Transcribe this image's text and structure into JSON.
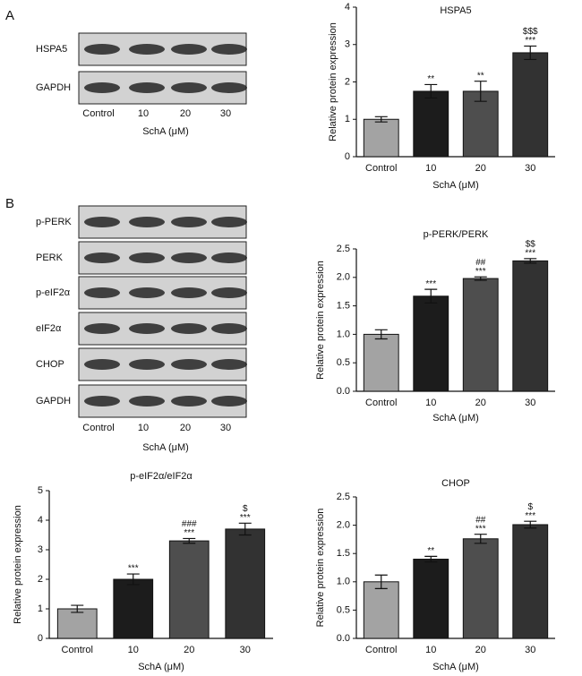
{
  "panel_labels": [
    "A",
    "B"
  ],
  "blots": [
    {
      "rows": [
        "HSPA5",
        "GAPDH"
      ],
      "lanes": [
        "Control",
        "10",
        "20",
        "30"
      ],
      "xlabel": "SchA (μM)"
    },
    {
      "rows": [
        "p-PERK",
        "PERK",
        "p-eIF2α",
        "eIF2α",
        "CHOP",
        "GAPDH"
      ],
      "lanes": [
        "Control",
        "10",
        "20",
        "30"
      ],
      "xlabel": "SchA (μM)"
    }
  ],
  "chart_data": [
    {
      "type": "bar",
      "title": "HSPA5",
      "ylabel": "Relative protein expression",
      "xlabel": "SchA (μM)",
      "categories": [
        "Control",
        "10",
        "20",
        "30"
      ],
      "values": [
        1.0,
        1.75,
        1.75,
        2.78
      ],
      "errors": [
        0.07,
        0.18,
        0.27,
        0.18
      ],
      "colors": [
        "#a3a3a3",
        "#1c1c1c",
        "#4e4e4e",
        "#323232"
      ],
      "annotations": [
        [],
        [
          "**"
        ],
        [
          "**"
        ],
        [
          "$$$",
          "***"
        ]
      ],
      "ylim": [
        0,
        4
      ],
      "yticks": [
        0,
        1,
        2,
        3,
        4
      ]
    },
    {
      "type": "bar",
      "title": "p-PERK/PERK",
      "ylabel": "Relative protein expression",
      "xlabel": "SchA (μM)",
      "categories": [
        "Control",
        "10",
        "20",
        "30"
      ],
      "values": [
        1.0,
        1.67,
        1.98,
        2.29
      ],
      "errors": [
        0.08,
        0.12,
        0.03,
        0.04
      ],
      "colors": [
        "#a3a3a3",
        "#1c1c1c",
        "#4e4e4e",
        "#323232"
      ],
      "annotations": [
        [],
        [
          "***"
        ],
        [
          "##",
          "***"
        ],
        [
          "$$",
          "***"
        ]
      ],
      "ylim": [
        0,
        2.5
      ],
      "yticks": [
        {
          "value": 0,
          "label": "0.0"
        },
        0.5,
        {
          "value": 1,
          "label": "1.0"
        },
        1.5,
        {
          "value": 2,
          "label": "2.0"
        },
        2.5
      ]
    },
    {
      "type": "bar",
      "title": "p-eIF2α/eIF2α",
      "ylabel": "Relative protein expression",
      "xlabel": "SchA (μM)",
      "categories": [
        "Control",
        "10",
        "20",
        "30"
      ],
      "values": [
        1.0,
        2.0,
        3.3,
        3.7
      ],
      "errors": [
        0.12,
        0.18,
        0.08,
        0.2
      ],
      "colors": [
        "#a3a3a3",
        "#1c1c1c",
        "#4e4e4e",
        "#323232"
      ],
      "annotations": [
        [],
        [
          "***"
        ],
        [
          "###",
          "***"
        ],
        [
          "$",
          "***"
        ]
      ],
      "ylim": [
        0,
        5
      ],
      "yticks": [
        0,
        1,
        2,
        3,
        4,
        5
      ]
    },
    {
      "type": "bar",
      "title": "CHOP",
      "ylabel": "Relative protein expression",
      "xlabel": "SchA (μM)",
      "categories": [
        "Control",
        "10",
        "20",
        "30"
      ],
      "values": [
        1.0,
        1.4,
        1.76,
        2.01
      ],
      "errors": [
        0.12,
        0.05,
        0.08,
        0.06
      ],
      "colors": [
        "#a3a3a3",
        "#1c1c1c",
        "#4e4e4e",
        "#323232"
      ],
      "annotations": [
        [],
        [
          "**"
        ],
        [
          "##",
          "***"
        ],
        [
          "$",
          "***"
        ]
      ],
      "ylim": [
        0,
        2.5
      ],
      "yticks": [
        {
          "value": 0,
          "label": "0.0"
        },
        0.5,
        {
          "value": 1,
          "label": "1.0"
        },
        1.5,
        {
          "value": 2,
          "label": "2.0"
        },
        2.5
      ]
    }
  ]
}
